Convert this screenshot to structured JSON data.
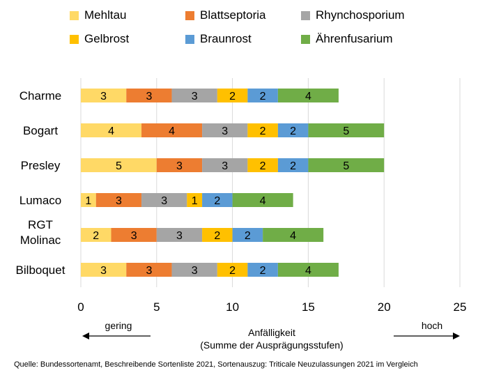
{
  "chart_data": {
    "type": "bar",
    "orientation": "horizontal",
    "stacked": true,
    "categories": [
      "Charme",
      "Bogart",
      "Presley",
      "Lumaco",
      "RGT Molinac",
      "Bilboquet"
    ],
    "series": [
      {
        "name": "Mehltau",
        "color": "#FFD966",
        "values": [
          3,
          4,
          5,
          1,
          2,
          3
        ]
      },
      {
        "name": "Blattseptoria",
        "color": "#ED7D31",
        "values": [
          3,
          4,
          3,
          3,
          3,
          3
        ]
      },
      {
        "name": "Rhynchosporium",
        "color": "#A5A5A5",
        "values": [
          3,
          3,
          3,
          3,
          3,
          3
        ]
      },
      {
        "name": "Gelbrost",
        "color": "#FFC000",
        "values": [
          2,
          2,
          2,
          1,
          2,
          2
        ]
      },
      {
        "name": "Braunrost",
        "color": "#5B9BD5",
        "values": [
          2,
          2,
          2,
          2,
          2,
          2
        ]
      },
      {
        "name": "Ährenfusarium",
        "color": "#70AD47",
        "values": [
          4,
          5,
          5,
          4,
          4,
          4
        ]
      }
    ],
    "xlim": [
      0,
      25
    ],
    "xticks": [
      0,
      5,
      10,
      15,
      20,
      25
    ],
    "grid": true,
    "legend_position": "top",
    "xlabel": "Anfälligkeit",
    "xlabel_sub": "(Summe der Ausprägungsstufen)",
    "arrow_left_label": "gering",
    "arrow_right_label": "hoch"
  },
  "source": "Quelle: Bundessortenamt, Beschreibende Sortenliste 2021, Sortenauszug: Triticale Neuzulassungen 2021 im Vergleich"
}
